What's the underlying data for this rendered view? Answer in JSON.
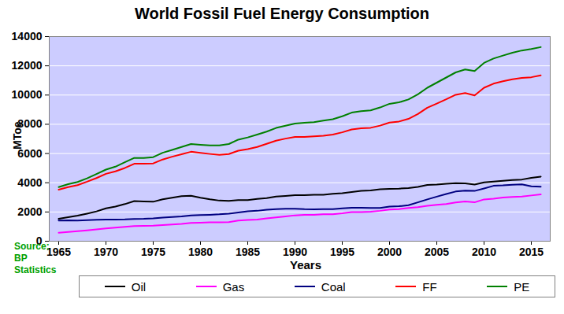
{
  "chart_data": {
    "type": "line",
    "title": "World Fossil Fuel Energy Consumption",
    "x_label": "Years",
    "y_label": "MToe",
    "source": "Source: BP Statistics",
    "x": [
      1965,
      1966,
      1967,
      1968,
      1969,
      1970,
      1971,
      1972,
      1973,
      1974,
      1975,
      1976,
      1977,
      1978,
      1979,
      1980,
      1981,
      1982,
      1983,
      1984,
      1985,
      1986,
      1987,
      1988,
      1989,
      1990,
      1991,
      1992,
      1993,
      1994,
      1995,
      1996,
      1997,
      1998,
      1999,
      2000,
      2001,
      2002,
      2003,
      2004,
      2005,
      2006,
      2007,
      2008,
      2009,
      2010,
      2011,
      2012,
      2013,
      2014,
      2015,
      2016
    ],
    "series": [
      {
        "name": "Oil",
        "color": "#000000",
        "values": [
          1530,
          1640,
          1750,
          1890,
          2040,
          2250,
          2370,
          2540,
          2750,
          2720,
          2700,
          2870,
          2980,
          3080,
          3110,
          2980,
          2870,
          2780,
          2760,
          2810,
          2810,
          2890,
          2950,
          3050,
          3100,
          3150,
          3150,
          3180,
          3180,
          3250,
          3290,
          3370,
          3450,
          3470,
          3550,
          3580,
          3600,
          3640,
          3710,
          3850,
          3880,
          3930,
          3970,
          3960,
          3880,
          4030,
          4080,
          4130,
          4180,
          4220,
          4330,
          4420
        ]
      },
      {
        "name": "Gas",
        "color": "#ff00ff",
        "values": [
          580,
          630,
          680,
          740,
          810,
          880,
          930,
          980,
          1030,
          1050,
          1060,
          1110,
          1140,
          1180,
          1250,
          1270,
          1290,
          1290,
          1310,
          1410,
          1450,
          1480,
          1560,
          1630,
          1700,
          1770,
          1800,
          1810,
          1840,
          1850,
          1910,
          1990,
          1990,
          2020,
          2080,
          2170,
          2200,
          2270,
          2330,
          2420,
          2490,
          2550,
          2650,
          2720,
          2660,
          2860,
          2910,
          2990,
          3030,
          3060,
          3130,
          3200
        ]
      },
      {
        "name": "Coal",
        "color": "#000080",
        "values": [
          1420,
          1430,
          1410,
          1440,
          1470,
          1480,
          1480,
          1490,
          1520,
          1530,
          1560,
          1610,
          1660,
          1690,
          1760,
          1790,
          1810,
          1840,
          1890,
          1970,
          2040,
          2080,
          2150,
          2200,
          2220,
          2220,
          2190,
          2180,
          2190,
          2200,
          2250,
          2290,
          2290,
          2270,
          2280,
          2370,
          2390,
          2460,
          2660,
          2860,
          3050,
          3230,
          3400,
          3460,
          3440,
          3610,
          3790,
          3820,
          3870,
          3890,
          3760,
          3730
        ]
      },
      {
        "name": "FF",
        "color": "#ff0000",
        "values": [
          3530,
          3700,
          3840,
          4070,
          4320,
          4610,
          4780,
          5010,
          5300,
          5300,
          5320,
          5590,
          5780,
          5950,
          6120,
          6040,
          5970,
          5910,
          5960,
          6190,
          6300,
          6450,
          6660,
          6880,
          7020,
          7140,
          7140,
          7170,
          7210,
          7300,
          7450,
          7650,
          7730,
          7760,
          7910,
          8120,
          8190,
          8370,
          8700,
          9130,
          9420,
          9710,
          10020,
          10140,
          9980,
          10500,
          10780,
          10940,
          11080,
          11170,
          11220,
          11350
        ]
      },
      {
        "name": "PE",
        "color": "#008000",
        "values": [
          3700,
          3900,
          4050,
          4300,
          4600,
          4900,
          5100,
          5400,
          5700,
          5700,
          5750,
          6050,
          6250,
          6450,
          6650,
          6600,
          6550,
          6550,
          6650,
          6950,
          7100,
          7300,
          7500,
          7750,
          7900,
          8050,
          8100,
          8150,
          8250,
          8350,
          8550,
          8800,
          8900,
          8950,
          9150,
          9400,
          9500,
          9700,
          10050,
          10500,
          10850,
          11200,
          11550,
          11750,
          11650,
          12200,
          12500,
          12700,
          12900,
          13050,
          13150,
          13280
        ]
      }
    ],
    "xlim": [
      1964,
      2017
    ],
    "xticks": [
      1965,
      1970,
      1975,
      1980,
      1985,
      1990,
      1995,
      2000,
      2005,
      2010,
      2015
    ],
    "ylim": [
      0,
      14000
    ],
    "yticks": [
      0,
      2000,
      4000,
      6000,
      8000,
      10000,
      12000,
      14000
    ],
    "grid": true,
    "legend": "bottom"
  }
}
